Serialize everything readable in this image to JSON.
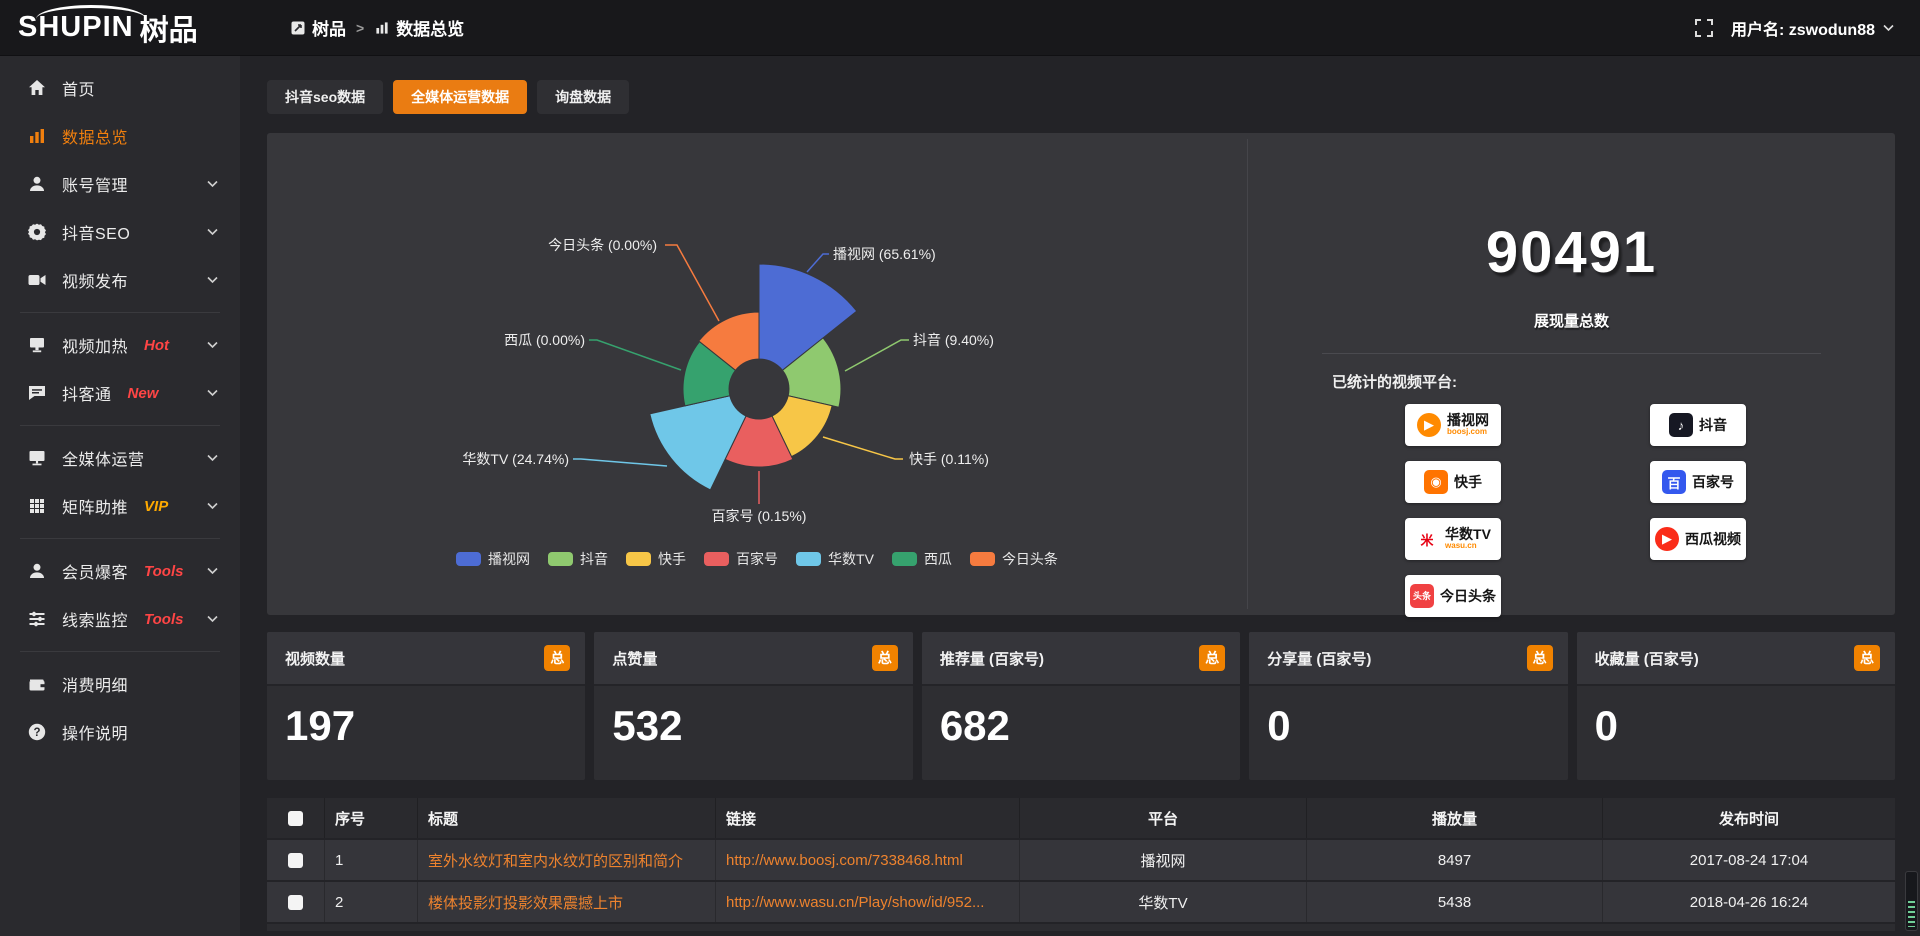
{
  "topbar": {
    "logo_text": "SHUPIN",
    "logo_cn": "树品",
    "breadcrumb": [
      {
        "label": "树品"
      },
      {
        "label": "数据总览"
      }
    ],
    "breadcrumb_sep": ">",
    "username": "用户名: zswodun88"
  },
  "sidebar": {
    "items": [
      {
        "icon": "home-icon",
        "label": "首页"
      },
      {
        "icon": "bar-chart-icon",
        "label": "数据总览",
        "active": true
      },
      {
        "icon": "user-icon",
        "label": "账号管理",
        "chevron": true
      },
      {
        "icon": "gear-icon",
        "label": "抖音SEO",
        "chevron": true
      },
      {
        "icon": "video-icon",
        "label": "视频发布",
        "chevron": true
      },
      {
        "divider": true
      },
      {
        "icon": "heat-monitor-icon",
        "label": "视频加热",
        "tag": "Hot",
        "tag_color": "#ff4545",
        "chevron": true
      },
      {
        "icon": "chat-icon",
        "label": "抖客通",
        "tag": "New",
        "tag_color": "#ff4545",
        "chevron": true
      },
      {
        "divider": true
      },
      {
        "icon": "screen-icon",
        "label": "全媒体运营",
        "chevron": true
      },
      {
        "icon": "grid-icon",
        "label": "矩阵助推",
        "tag": "VIP",
        "tag_color": "#ffaa00",
        "chevron": true
      },
      {
        "divider": true
      },
      {
        "icon": "member-icon",
        "label": "会员爆客",
        "tag": "Tools",
        "tag_color": "#ff4545",
        "chevron": true
      },
      {
        "icon": "sliders-icon",
        "label": "线索监控",
        "tag": "Tools",
        "tag_color": "#ff4545",
        "chevron": true
      },
      {
        "divider": true
      },
      {
        "icon": "wallet-icon",
        "label": "消费明细"
      },
      {
        "icon": "help-icon",
        "label": "操作说明"
      }
    ]
  },
  "tabs": [
    {
      "label": "抖音seo数据"
    },
    {
      "label": "全媒体运营数据",
      "active": true
    },
    {
      "label": "询盘数据"
    }
  ],
  "chart_data": {
    "type": "pie",
    "subtype": "nightingale-rose",
    "unit": "percent-share-of-plays",
    "slices": [
      {
        "name": "播视网",
        "pct": 65.61,
        "label": "播视网 (65.61%)",
        "color": "#4D6CD4"
      },
      {
        "name": "抖音",
        "pct": 9.4,
        "label": "抖音 (9.40%)",
        "color": "#8FC96F"
      },
      {
        "name": "快手",
        "pct": 0.11,
        "label": "快手 (0.11%)",
        "color": "#F7C647"
      },
      {
        "name": "百家号",
        "pct": 0.15,
        "label": "百家号 (0.15%)",
        "color": "#E95F5F"
      },
      {
        "name": "华数TV",
        "pct": 24.74,
        "label": "华数TV (24.74%)",
        "color": "#6FC7E8"
      },
      {
        "name": "西瓜",
        "pct": 0.0,
        "label": "西瓜 (0.00%)",
        "color": "#36A26E"
      },
      {
        "name": "今日头条",
        "pct": 0.0,
        "label": "今日头条 (0.00%)",
        "color": "#F67B3F"
      }
    ],
    "legend": [
      "播视网",
      "抖音",
      "快手",
      "百家号",
      "华数TV",
      "西瓜",
      "今日头条"
    ],
    "legend_position": "bottom"
  },
  "summary": {
    "total_value": "90491",
    "total_label": "展现量总数",
    "platforms_title": "已统计的视频平台:",
    "platform_columns": [
      [
        {
          "name": "播视网",
          "sub": "boosj.com",
          "icon": "boosj-logo",
          "icon_bg": "#ff8a00",
          "glyph": "▶",
          "round": true
        },
        {
          "name": "快手",
          "icon": "kuaishou-logo",
          "icon_bg": "#ff7300",
          "glyph": "◉"
        },
        {
          "name": "华数TV",
          "sub": "wasu.cn",
          "icon": "wasu-logo",
          "icon_bg": "#ffffff",
          "icon_fg": "#e60012",
          "glyph": "米"
        },
        {
          "name": "今日头条",
          "icon": "toutiao-logo",
          "icon_bg": "#f04142",
          "glyph": "头条",
          "glyph_small": true
        }
      ],
      [
        {
          "name": "抖音",
          "icon": "douyin-logo",
          "icon_bg": "#161823",
          "glyph": "♪"
        },
        {
          "name": "百家号",
          "icon": "baijiahao-logo",
          "icon_bg": "#3458ee",
          "glyph": "百"
        },
        {
          "name": "西瓜视频",
          "icon": "xigua-logo",
          "icon_bg": "#fa2c19",
          "glyph": "▶",
          "round": true
        }
      ]
    ]
  },
  "stat_cards": [
    {
      "label": "视频数量",
      "badge": "总",
      "value": "197"
    },
    {
      "label": "点赞量",
      "badge": "总",
      "value": "532"
    },
    {
      "label": "推荐量 (百家号)",
      "badge": "总",
      "value": "682"
    },
    {
      "label": "分享量 (百家号)",
      "badge": "总",
      "value": "0"
    },
    {
      "label": "收藏量 (百家号)",
      "badge": "总",
      "value": "0"
    }
  ],
  "table": {
    "headers": [
      "",
      "序号",
      "标题",
      "链接",
      "平台",
      "播放量",
      "发布时间"
    ],
    "rows": [
      {
        "no": "1",
        "title": "室外水纹灯和室内水纹灯的区别和简介",
        "link": "http://www.boosj.com/7338468.html",
        "platform": "播视网",
        "plays": "8497",
        "time": "2017-08-24 17:04"
      },
      {
        "no": "2",
        "title": "楼体投影灯投影效果震撼上市",
        "link": "http://www.wasu.cn/Play/show/id/952...",
        "platform": "华数TV",
        "plays": "5438",
        "time": "2018-04-26 16:24"
      }
    ]
  },
  "colors": {
    "accent": "#ea7c12",
    "sidebar_active": "#f07f0e",
    "badge_orange": "#f08200",
    "link_orange": "#ee832e"
  }
}
